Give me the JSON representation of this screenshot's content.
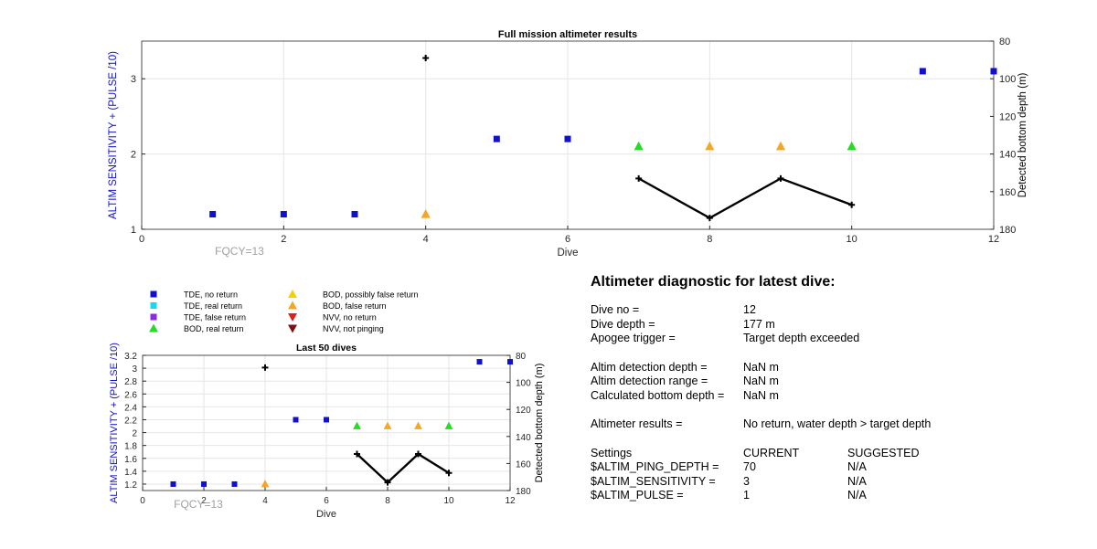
{
  "chart_data": [
    {
      "type": "scatter",
      "title": "Full mission altimeter results",
      "xlabel": "Dive",
      "ylabel_left": "ALTIM SENSITIVITY + (PULSE /10)",
      "ylabel_right": "Detected bottom depth (m)",
      "xlim": [
        0,
        12
      ],
      "ylim_left": [
        1,
        3.5
      ],
      "ylim_right": [
        80,
        180
      ],
      "y_right_reversed": true,
      "xticks": [
        "0",
        "2",
        "4",
        "6",
        "8",
        "10",
        "12"
      ],
      "yticks_left": [
        "1",
        "2",
        "3"
      ],
      "yticks_right": [
        "80",
        "100",
        "120",
        "140",
        "160",
        "180"
      ],
      "grid": true,
      "annotation": "FQCY=13",
      "series": [
        {
          "name": "TDE, no return",
          "marker": "square",
          "color": "#1010d0",
          "x": [
            1,
            2,
            3,
            5,
            6,
            11,
            12
          ],
          "y": [
            1.2,
            1.2,
            1.2,
            2.2,
            2.2,
            3.1,
            3.1
          ]
        },
        {
          "name": "BOD, real return",
          "marker": "triangle",
          "color": "#22dd22",
          "x": [
            7,
            10
          ],
          "y": [
            2.1,
            2.1
          ]
        },
        {
          "name": "BOD, false return",
          "marker": "triangle",
          "color": "#f5a623",
          "x": [
            4,
            8,
            9
          ],
          "y": [
            1.2,
            2.1,
            2.1
          ]
        },
        {
          "name": "",
          "marker": "plus-line",
          "axis": "right",
          "color": "#000000",
          "x": [
            4
          ],
          "y": [
            89
          ]
        },
        {
          "name": "",
          "marker": "plus-line",
          "axis": "right",
          "color": "#000000",
          "x": [
            7,
            8,
            9,
            10
          ],
          "y": [
            153,
            174,
            153,
            167
          ]
        }
      ]
    },
    {
      "type": "scatter",
      "title": "Last 50 dives",
      "xlabel": "Dive",
      "ylabel_left": "ALTIM SENSITIVITY + (PULSE /10)",
      "ylabel_right": "Detected bottom depth (m)",
      "xlim": [
        0,
        12
      ],
      "ylim_left": [
        1.1,
        3.2
      ],
      "ylim_right": [
        80,
        180
      ],
      "y_right_reversed": true,
      "xticks": [
        "0",
        "2",
        "4",
        "6",
        "8",
        "10",
        "12"
      ],
      "yticks_left": [
        "1.2",
        "1.4",
        "1.6",
        "1.8",
        "2",
        "2.2",
        "2.4",
        "2.6",
        "2.8",
        "3",
        "3.2"
      ],
      "yticks_right": [
        "80",
        "100",
        "120",
        "140",
        "160",
        "180"
      ],
      "grid": true,
      "annotation": "FQCY=13",
      "series": [
        {
          "name": "TDE, no return",
          "marker": "square",
          "color": "#1010d0",
          "x": [
            1,
            2,
            3,
            5,
            6,
            11,
            12
          ],
          "y": [
            1.2,
            1.2,
            1.2,
            2.2,
            2.2,
            3.1,
            3.1
          ]
        },
        {
          "name": "BOD, real return",
          "marker": "triangle",
          "color": "#22dd22",
          "x": [
            7,
            10
          ],
          "y": [
            2.1,
            2.1
          ]
        },
        {
          "name": "BOD, false return",
          "marker": "triangle",
          "color": "#f5a623",
          "x": [
            4,
            8,
            9
          ],
          "y": [
            1.2,
            2.1,
            2.1
          ]
        },
        {
          "name": "",
          "marker": "plus-line",
          "axis": "right",
          "color": "#000000",
          "x": [
            4
          ],
          "y": [
            89
          ]
        },
        {
          "name": "",
          "marker": "plus-line",
          "axis": "right",
          "color": "#000000",
          "x": [
            7,
            8,
            9,
            10
          ],
          "y": [
            153,
            174,
            153,
            167
          ]
        }
      ]
    }
  ],
  "legend": [
    {
      "label": "TDE, no return",
      "marker": "square",
      "color": "#1010d0"
    },
    {
      "label": "TDE, real return",
      "marker": "square",
      "color": "#18d8f0"
    },
    {
      "label": "TDE, false return",
      "marker": "square",
      "color": "#8a2be2"
    },
    {
      "label": "BOD, real return",
      "marker": "triangle-up",
      "color": "#22dd22"
    },
    {
      "label": "BOD, possibly false return",
      "marker": "triangle-up",
      "color": "#f5d000"
    },
    {
      "label": "BOD, false return",
      "marker": "triangle-up",
      "color": "#f5a623"
    },
    {
      "label": "NVV, no return",
      "marker": "triangle-down",
      "color": "#e02020"
    },
    {
      "label": "NVV, not pinging",
      "marker": "triangle-down",
      "color": "#7a1010"
    }
  ],
  "diagnostic": {
    "title": "Altimeter diagnostic for latest dive:",
    "dive_no_label": "Dive no =",
    "dive_no": "12",
    "dive_depth_label": "Dive depth =",
    "dive_depth": "177 m",
    "apogee_label": "Apogee trigger =",
    "apogee": "Target depth exceeded",
    "det_depth_label": "Altim detection depth =",
    "det_depth": "NaN m",
    "det_range_label": "Altim detection range =",
    "det_range": "NaN m",
    "calc_depth_label": "Calculated bottom depth =",
    "calc_depth": "NaN m",
    "results_label": "Altimeter results =",
    "results": "No return, water depth > target depth",
    "settings_label": "Settings",
    "current_label": "CURRENT",
    "suggested_label": "SUGGESTED",
    "settings": [
      {
        "name": "$ALTIM_PING_DEPTH =",
        "current": "70",
        "suggested": "N/A"
      },
      {
        "name": "$ALTIM_SENSITIVITY =",
        "current": "3",
        "suggested": "N/A"
      },
      {
        "name": "$ALTIM_PULSE =",
        "current": "1",
        "suggested": "N/A"
      }
    ]
  },
  "colors": {
    "axis_label_left": "#1010d0",
    "grid": "#e6e6e6",
    "annotation": "#a0a0a0"
  }
}
